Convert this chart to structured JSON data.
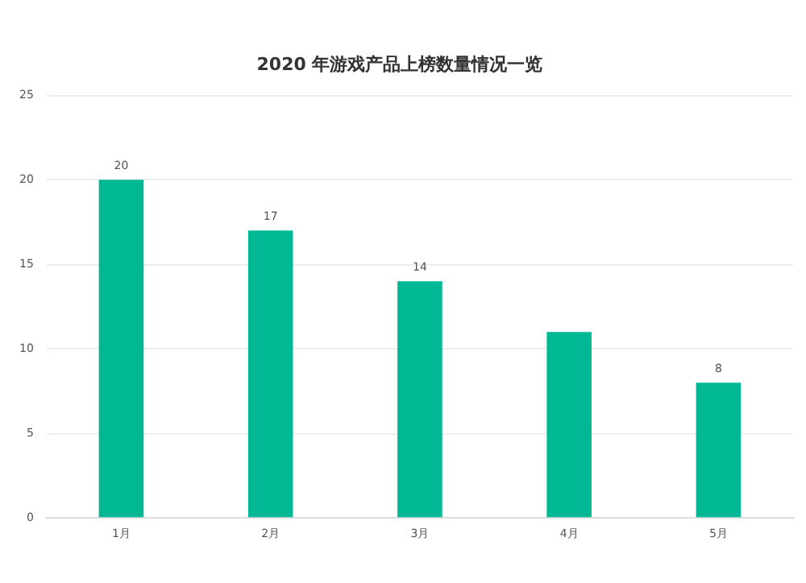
{
  "chart_data": {
    "type": "bar",
    "title": "2020 年游戏产品上榜数量情况一览",
    "categories": [
      "1月",
      "2月",
      "3月",
      "4月",
      "5月"
    ],
    "values": [
      20,
      17,
      14,
      11,
      8
    ],
    "color": "#00b894",
    "value_labels": [
      "20",
      "17",
      "14",
      null,
      "8"
    ],
    "ylim": [
      0,
      25
    ],
    "yticks": [
      0,
      5,
      10,
      15,
      20,
      25
    ],
    "grid": "y",
    "legend": false
  }
}
